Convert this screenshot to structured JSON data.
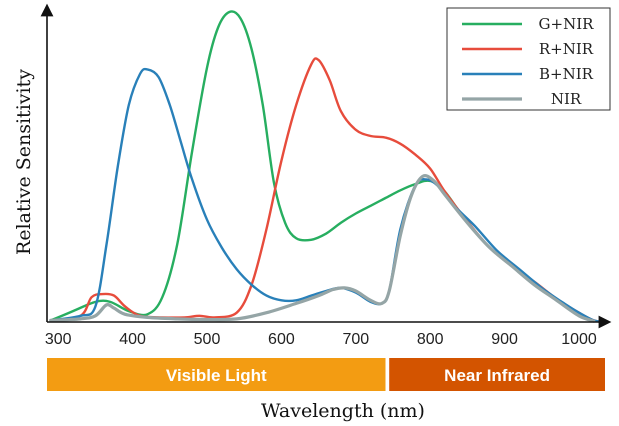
{
  "chart_data": {
    "type": "line",
    "title": "",
    "xlabel": "Wavelength (nm)",
    "ylabel": "Relative Sensitivity",
    "xlim": [
      285,
      1035
    ],
    "ylim": [
      0,
      1
    ],
    "x_ticks": [
      300,
      400,
      500,
      600,
      700,
      800,
      900,
      1000
    ],
    "grid": false,
    "legend_position": "top-right",
    "bands": [
      {
        "label": "Visible Light",
        "from": 285,
        "to": 740,
        "color": "#F39C12"
      },
      {
        "label": "Near Infrared",
        "from": 745,
        "to": 1035,
        "color": "#D35400"
      }
    ],
    "series": [
      {
        "name": "G+NIR",
        "color": "#27AE60",
        "points": [
          [
            290,
            0.005
          ],
          [
            320,
            0.035
          ],
          [
            350,
            0.065
          ],
          [
            370,
            0.065
          ],
          [
            395,
            0.035
          ],
          [
            420,
            0.025
          ],
          [
            440,
            0.08
          ],
          [
            460,
            0.25
          ],
          [
            480,
            0.55
          ],
          [
            500,
            0.82
          ],
          [
            515,
            0.95
          ],
          [
            530,
            1.0
          ],
          [
            545,
            0.98
          ],
          [
            560,
            0.88
          ],
          [
            575,
            0.7
          ],
          [
            590,
            0.45
          ],
          [
            605,
            0.32
          ],
          [
            620,
            0.27
          ],
          [
            640,
            0.265
          ],
          [
            660,
            0.285
          ],
          [
            680,
            0.32
          ],
          [
            700,
            0.35
          ],
          [
            720,
            0.375
          ],
          [
            740,
            0.4
          ],
          [
            760,
            0.425
          ],
          [
            780,
            0.445
          ],
          [
            800,
            0.455
          ],
          [
            820,
            0.42
          ],
          [
            850,
            0.32
          ],
          [
            880,
            0.24
          ],
          [
            910,
            0.18
          ],
          [
            940,
            0.12
          ],
          [
            970,
            0.07
          ],
          [
            1000,
            0.02
          ],
          [
            1020,
            0.003
          ]
        ]
      },
      {
        "name": "R+NIR",
        "color": "#E74C3C",
        "points": [
          [
            290,
            0.005
          ],
          [
            330,
            0.02
          ],
          [
            345,
            0.08
          ],
          [
            360,
            0.09
          ],
          [
            375,
            0.085
          ],
          [
            390,
            0.05
          ],
          [
            410,
            0.02
          ],
          [
            440,
            0.015
          ],
          [
            470,
            0.015
          ],
          [
            490,
            0.02
          ],
          [
            510,
            0.015
          ],
          [
            540,
            0.03
          ],
          [
            560,
            0.12
          ],
          [
            580,
            0.3
          ],
          [
            600,
            0.52
          ],
          [
            620,
            0.7
          ],
          [
            640,
            0.83
          ],
          [
            650,
            0.845
          ],
          [
            665,
            0.78
          ],
          [
            680,
            0.68
          ],
          [
            700,
            0.62
          ],
          [
            720,
            0.6
          ],
          [
            740,
            0.595
          ],
          [
            760,
            0.575
          ],
          [
            780,
            0.54
          ],
          [
            800,
            0.495
          ],
          [
            820,
            0.42
          ],
          [
            850,
            0.325
          ],
          [
            880,
            0.24
          ],
          [
            910,
            0.18
          ],
          [
            940,
            0.13
          ],
          [
            970,
            0.075
          ],
          [
            1000,
            0.03
          ],
          [
            1020,
            0.005
          ],
          [
            1035,
            0.0
          ]
        ]
      },
      {
        "name": "B+NIR",
        "color": "#2980B9",
        "points": [
          [
            290,
            0.005
          ],
          [
            330,
            0.02
          ],
          [
            350,
            0.05
          ],
          [
            365,
            0.25
          ],
          [
            380,
            0.5
          ],
          [
            395,
            0.7
          ],
          [
            410,
            0.8
          ],
          [
            420,
            0.815
          ],
          [
            435,
            0.79
          ],
          [
            450,
            0.7
          ],
          [
            465,
            0.58
          ],
          [
            480,
            0.46
          ],
          [
            500,
            0.33
          ],
          [
            520,
            0.24
          ],
          [
            540,
            0.17
          ],
          [
            560,
            0.12
          ],
          [
            580,
            0.085
          ],
          [
            600,
            0.07
          ],
          [
            620,
            0.07
          ],
          [
            640,
            0.085
          ],
          [
            660,
            0.1
          ],
          [
            680,
            0.11
          ],
          [
            700,
            0.095
          ],
          [
            720,
            0.065
          ],
          [
            735,
            0.06
          ],
          [
            745,
            0.1
          ],
          [
            760,
            0.3
          ],
          [
            780,
            0.44
          ],
          [
            795,
            0.46
          ],
          [
            810,
            0.44
          ],
          [
            830,
            0.38
          ],
          [
            860,
            0.31
          ],
          [
            890,
            0.23
          ],
          [
            920,
            0.17
          ],
          [
            950,
            0.11
          ],
          [
            980,
            0.06
          ],
          [
            1000,
            0.03
          ],
          [
            1020,
            0.005
          ],
          [
            1035,
            0.0
          ]
        ]
      },
      {
        "name": "NIR",
        "color": "#95A5A6",
        "points": [
          [
            290,
            0.005
          ],
          [
            330,
            0.01
          ],
          [
            350,
            0.02
          ],
          [
            365,
            0.055
          ],
          [
            375,
            0.045
          ],
          [
            390,
            0.025
          ],
          [
            420,
            0.015
          ],
          [
            460,
            0.01
          ],
          [
            500,
            0.008
          ],
          [
            540,
            0.01
          ],
          [
            580,
            0.03
          ],
          [
            620,
            0.06
          ],
          [
            650,
            0.085
          ],
          [
            670,
            0.105
          ],
          [
            685,
            0.11
          ],
          [
            700,
            0.1
          ],
          [
            720,
            0.07
          ],
          [
            735,
            0.06
          ],
          [
            745,
            0.1
          ],
          [
            760,
            0.28
          ],
          [
            775,
            0.41
          ],
          [
            790,
            0.47
          ],
          [
            805,
            0.455
          ],
          [
            820,
            0.41
          ],
          [
            850,
            0.32
          ],
          [
            880,
            0.24
          ],
          [
            910,
            0.18
          ],
          [
            940,
            0.12
          ],
          [
            970,
            0.07
          ],
          [
            1000,
            0.02
          ],
          [
            1020,
            0.003
          ]
        ]
      }
    ]
  }
}
